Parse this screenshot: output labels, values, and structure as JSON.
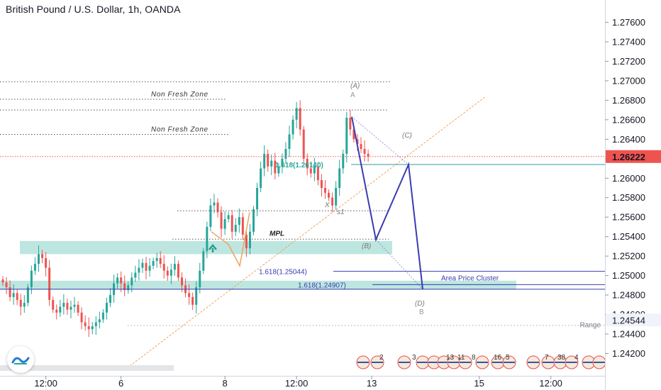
{
  "header": {
    "title": "British Pound / U.S. Dollar, 1h, OANDA"
  },
  "colors": {
    "up": "#26a69a",
    "down": "#ef5350",
    "pattern": "#3b3bb3",
    "zone": "#a8ddd6",
    "price_line": "#ef5350",
    "trend": "#f0a35e"
  },
  "chart_data": {
    "type": "candlestick",
    "ylim": [
      1.2408,
      1.2772
    ],
    "y_ticks": [
      "1.27600",
      "1.27400",
      "1.27200",
      "1.27000",
      "1.26800",
      "1.26600",
      "1.26400",
      "1.26200",
      "1.26000",
      "1.25800",
      "1.25600",
      "1.25400",
      "1.25200",
      "1.25000",
      "1.24800",
      "1.24600",
      "1.24400",
      "1.24200"
    ],
    "y_tick_values": [
      1.276,
      1.274,
      1.272,
      1.27,
      1.268,
      1.266,
      1.264,
      1.262,
      1.26,
      1.258,
      1.256,
      1.254,
      1.252,
      1.25,
      1.248,
      1.246,
      1.244,
      1.242
    ],
    "x_ticks": [
      {
        "label": "12:00",
        "bar": 12
      },
      {
        "label": "6",
        "bar": 33
      },
      {
        "label": "8",
        "bar": 62
      },
      {
        "label": "12:00",
        "bar": 82
      },
      {
        "label": "13",
        "bar": 103
      },
      {
        "label": "15",
        "bar": 133
      },
      {
        "label": "12:00",
        "bar": 153
      }
    ],
    "current_price": {
      "value": 1.26222,
      "label": "1.26222"
    },
    "range_label": {
      "value": 1.24544,
      "label": "1.24544",
      "text": "Range"
    },
    "closes": [
      1.2493,
      1.2488,
      1.2478,
      1.2482,
      1.2475,
      1.2468,
      1.2472,
      1.2488,
      1.2505,
      1.2512,
      1.2522,
      1.2518,
      1.2508,
      1.2475,
      1.2465,
      1.2462,
      1.2468,
      1.2472,
      1.2465,
      1.2468,
      1.247,
      1.2462,
      1.2452,
      1.2448,
      1.2445,
      1.2448,
      1.2452,
      1.2455,
      1.2462,
      1.2472,
      1.248,
      1.2492,
      1.2498,
      1.2492,
      1.2485,
      1.249,
      1.2498,
      1.2503,
      1.2508,
      1.2513,
      1.2505,
      1.251,
      1.2515,
      1.2518,
      1.2512,
      1.2505,
      1.25,
      1.2506,
      1.2512,
      1.2498,
      1.249,
      1.2482,
      1.2478,
      1.247,
      1.2488,
      1.2505,
      1.2525,
      1.255,
      1.2572,
      1.2575,
      1.2565,
      1.2548,
      1.2558,
      1.2562,
      1.2545,
      1.2552,
      1.256,
      1.2542,
      1.2528,
      1.2545,
      1.2568,
      1.259,
      1.261,
      1.2625,
      1.2612,
      1.2618,
      1.2605,
      1.2612,
      1.262,
      1.263,
      1.2645,
      1.266,
      1.2672,
      1.265,
      1.262,
      1.261,
      1.2605,
      1.2612,
      1.2598,
      1.259,
      1.2585,
      1.258,
      1.2572,
      1.259,
      1.261,
      1.2625,
      1.2662,
      1.265,
      1.264,
      1.2635,
      1.263,
      1.2625,
      1.2622
    ],
    "annotations": {
      "non_fresh_zone_1": "Non Fresh Zone",
      "non_fresh_zone_2": "Non Fresh Zone",
      "mpl": "MPL",
      "fib_a": "1.618(1.26140)",
      "fib_b": "1.618(1.25044)",
      "fib_c": "1.618(1.24907)",
      "area_cluster": "Area Price Cluster",
      "point_a": "(A)",
      "point_a_sub": "A",
      "point_b": "(B)",
      "point_c": "(C)",
      "point_d": "(D)",
      "point_d_sub": "B",
      "point_x": "X",
      "point_s1": "s1"
    },
    "pattern_points": [
      {
        "label": "A",
        "value": 1.2663
      },
      {
        "label": "B",
        "value": 1.2537
      },
      {
        "label": "C",
        "value": 1.2614
      },
      {
        "label": "D",
        "value": 1.2486
      }
    ],
    "events": [
      "2",
      "3",
      "13",
      "11",
      "8",
      "16",
      "5",
      "7",
      "38",
      "4"
    ]
  }
}
